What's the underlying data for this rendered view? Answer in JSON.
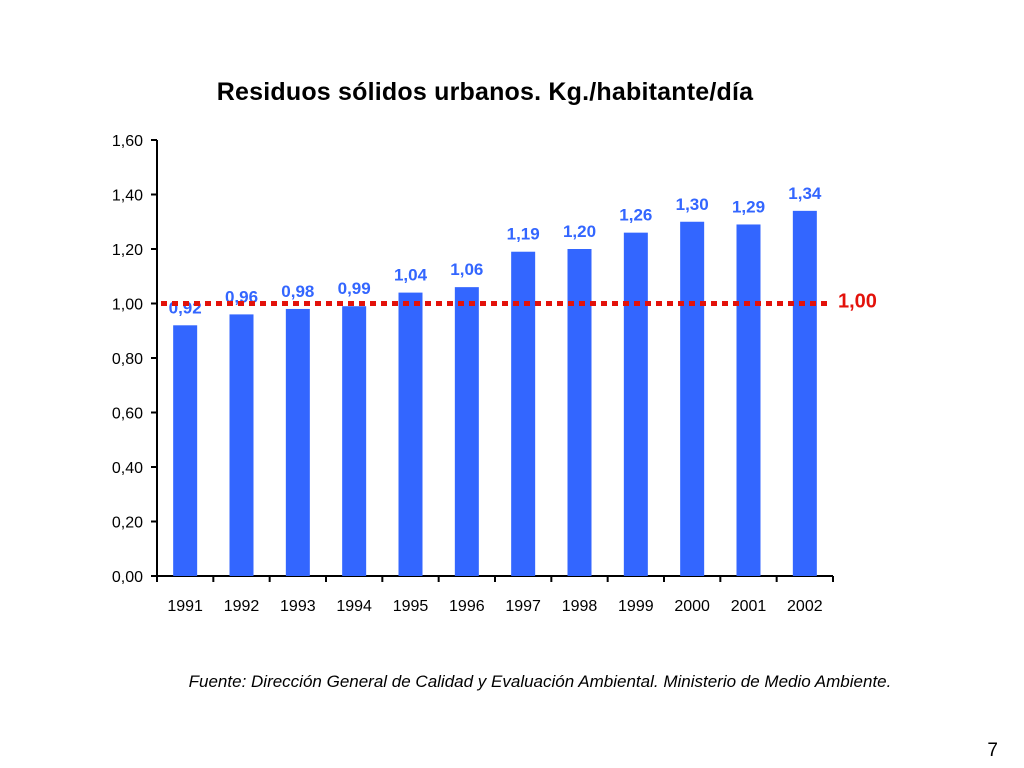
{
  "slide": {
    "title": "Residuos sólidos urbanos. Kg./habitante/día",
    "source": "Fuente: Dirección General de Calidad y Evaluación Ambiental. Ministerio de Medio Ambiente.",
    "page_number": "7"
  },
  "chart_data": {
    "type": "bar",
    "title": "Residuos sólidos urbanos. Kg./habitante/día",
    "xlabel": "",
    "ylabel": "",
    "categories": [
      "1991",
      "1992",
      "1993",
      "1994",
      "1995",
      "1996",
      "1997",
      "1998",
      "1999",
      "2000",
      "2001",
      "2002"
    ],
    "values": [
      0.92,
      0.96,
      0.98,
      0.99,
      1.04,
      1.06,
      1.19,
      1.2,
      1.26,
      1.3,
      1.29,
      1.34
    ],
    "value_labels": [
      "0,92",
      "0,96",
      "0,98",
      "0,99",
      "1,04",
      "1,06",
      "1,19",
      "1,20",
      "1,26",
      "1,30",
      "1,29",
      "1,34"
    ],
    "ylim": [
      0,
      1.6
    ],
    "yticks": [
      "0,00",
      "0,20",
      "0,40",
      "0,60",
      "0,80",
      "1,00",
      "1,20",
      "1,40",
      "1,60"
    ],
    "grid": false,
    "legend": "none",
    "reference_line": {
      "value": 1.0,
      "label": "1,00",
      "style": "dotted",
      "color": "#e3120b"
    },
    "colors": {
      "bar": "#3366ff",
      "value_label": "#3366ff",
      "axis": "#000000"
    }
  }
}
